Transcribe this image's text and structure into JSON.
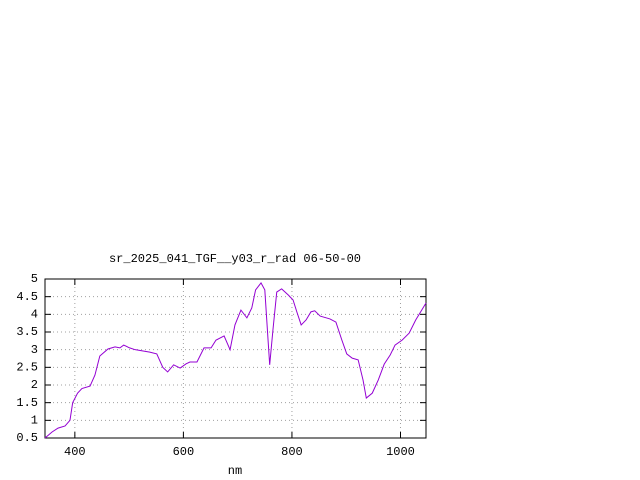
{
  "chart_data": {
    "type": "line",
    "title": "sr_2025_041_TGF__y03_r_rad 06-50-00",
    "x_label": "nm",
    "x": [
      345,
      358,
      369,
      382,
      391,
      396,
      405,
      413,
      428,
      437,
      446,
      461,
      474,
      483,
      490,
      501,
      511,
      538,
      551,
      562,
      571,
      582,
      594,
      605,
      612,
      625,
      638,
      651,
      660,
      675,
      686,
      695,
      706,
      717,
      726,
      733,
      743,
      750,
      756,
      759,
      765,
      772,
      781,
      793,
      802,
      809,
      817,
      826,
      835,
      842,
      852,
      870,
      881,
      892,
      901,
      911,
      922,
      931,
      937,
      948,
      959,
      970,
      981,
      990,
      1003,
      1016,
      1028,
      1036,
      1047
    ],
    "series": [
      {
        "color": "#9400d3",
        "values": [
          0.5,
          0.67,
          0.78,
          0.84,
          1.0,
          1.5,
          1.77,
          1.9,
          1.97,
          2.28,
          2.82,
          3.02,
          3.08,
          3.05,
          3.13,
          3.05,
          3.0,
          2.93,
          2.88,
          2.5,
          2.37,
          2.57,
          2.48,
          2.6,
          2.65,
          2.65,
          3.05,
          3.05,
          3.27,
          3.39,
          3.0,
          3.7,
          4.12,
          3.9,
          4.18,
          4.69,
          4.89,
          4.69,
          3.27,
          2.57,
          3.56,
          4.63,
          4.72,
          4.55,
          4.41,
          4.07,
          3.7,
          3.84,
          4.07,
          4.1,
          3.95,
          3.87,
          3.78,
          3.27,
          2.88,
          2.76,
          2.71,
          2.14,
          1.63,
          1.77,
          2.14,
          2.59,
          2.85,
          3.13,
          3.27,
          3.47,
          3.84,
          4.04,
          4.32
        ]
      }
    ],
    "xlim": [
      345,
      1047
    ],
    "ylim": [
      0.5,
      5
    ],
    "xticks": [
      400,
      600,
      800,
      1000
    ],
    "yticks": [
      0.5,
      1,
      1.5,
      2,
      2.5,
      3,
      3.5,
      4,
      4.5,
      5
    ],
    "grid": true
  }
}
